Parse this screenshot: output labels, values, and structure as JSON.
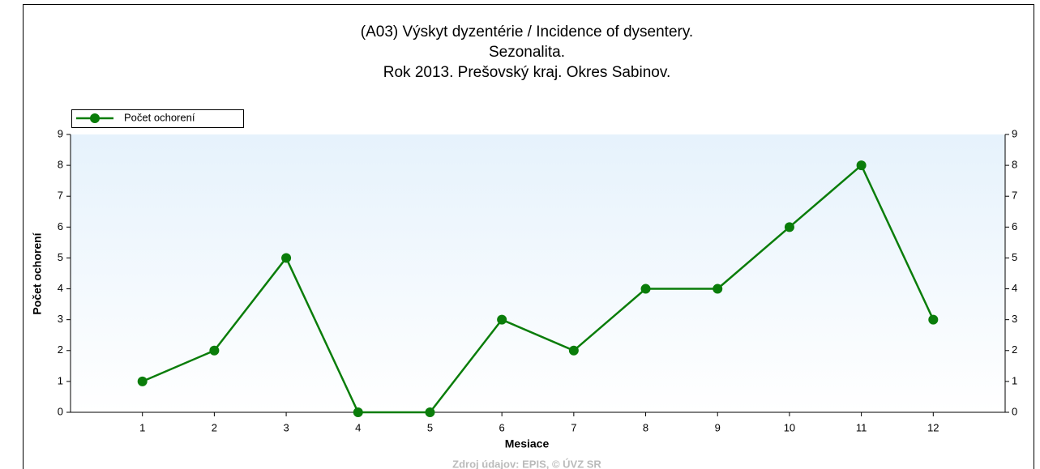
{
  "chart_data": {
    "type": "line",
    "title": [
      "(A03) Výskyt dyzentérie / Incidence of dysentery.",
      "Sezonalita.",
      "Rok 2013. Prešovský kraj. Okres Sabinov."
    ],
    "x_label": "Mesiace",
    "y_label": "Počet ochorení",
    "source": "Zdroj údajov: EPIS, © ÚVZ SR",
    "x": [
      1,
      2,
      3,
      4,
      5,
      6,
      7,
      8,
      9,
      10,
      11,
      12
    ],
    "series": [
      {
        "name": "Počet ochorení",
        "color": "#0a7d0a",
        "values": [
          1,
          2,
          5,
          0,
          0,
          3,
          2,
          4,
          4,
          6,
          8,
          3
        ]
      }
    ],
    "xlim": [
      0,
      13
    ],
    "xticks": [
      1,
      2,
      3,
      4,
      5,
      6,
      7,
      8,
      9,
      10,
      11,
      12
    ],
    "ylim": [
      0,
      9
    ],
    "yticks": [
      0,
      1,
      2,
      3,
      4,
      5,
      6,
      7,
      8,
      9
    ],
    "y2lim": [
      0,
      9
    ],
    "y2ticks": [
      0,
      1,
      2,
      3,
      4,
      5,
      6,
      7,
      8,
      9
    ],
    "legend": "top-left"
  }
}
